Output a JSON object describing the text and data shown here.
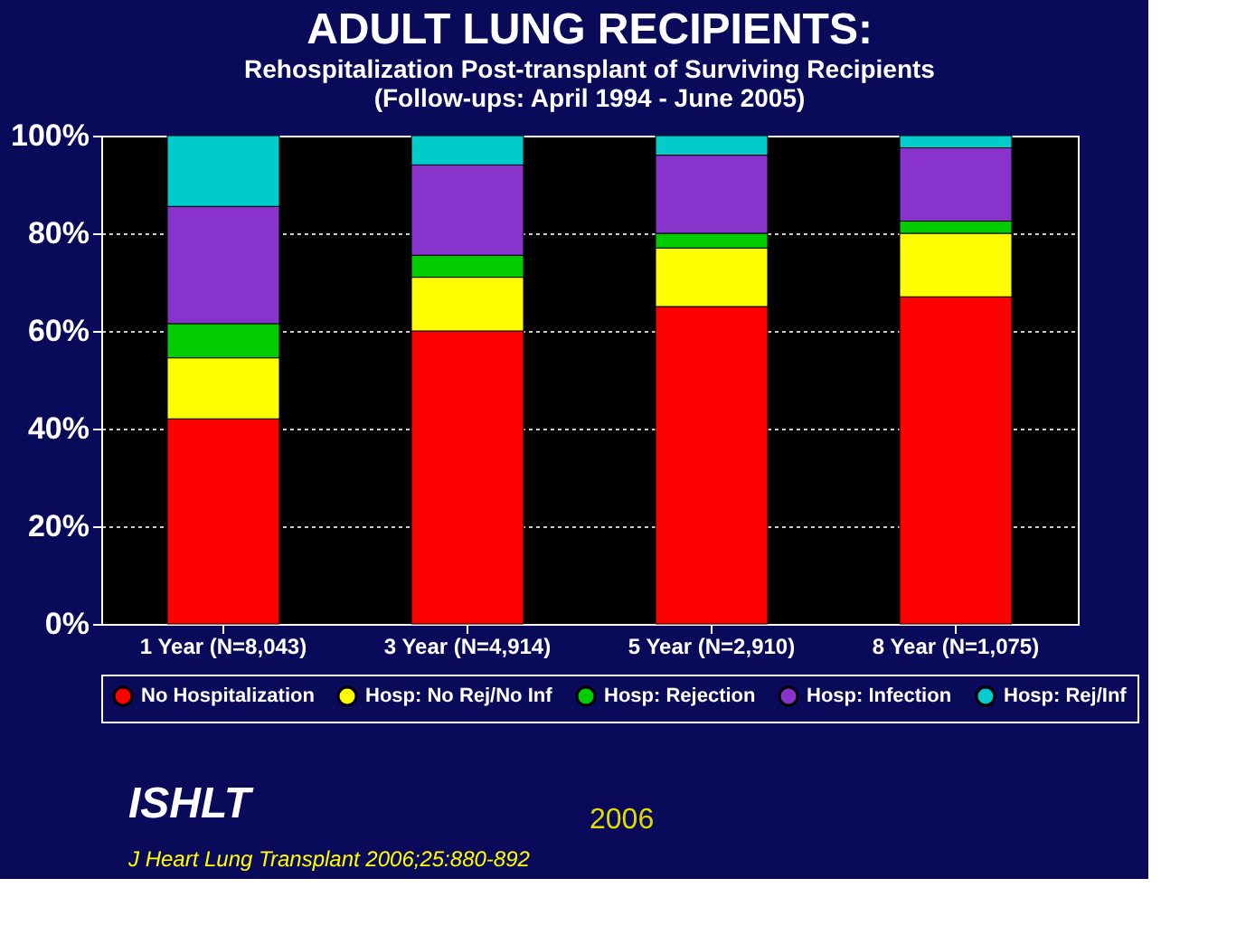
{
  "chart_data": {
    "type": "bar",
    "stacked": true,
    "title": "ADULT LUNG RECIPIENTS:",
    "subtitle": "Rehospitalization Post-transplant of Surviving Recipients\n(Follow-ups: April 1994 - June 2005)",
    "categories": [
      "1 Year (N=8,043)",
      "3 Year (N=4,914)",
      "5 Year (N=2,910)",
      "8 Year (N=1,075)"
    ],
    "series": [
      {
        "name": "No Hospitalization",
        "color": "#ff0000",
        "values": [
          42,
          60,
          65,
          67
        ]
      },
      {
        "name": "Hosp: No Rej/No Inf",
        "color": "#ffff00",
        "values": [
          12.5,
          11,
          12,
          13
        ]
      },
      {
        "name": "Hosp: Rejection",
        "color": "#00cc00",
        "values": [
          7,
          4.5,
          3,
          2.5
        ]
      },
      {
        "name": "Hosp: Infection",
        "color": "#8833cc",
        "values": [
          24,
          18.5,
          16,
          15
        ]
      },
      {
        "name": "Hosp: Rej/Inf",
        "color": "#00cccc",
        "values": [
          14.5,
          6,
          4,
          2.5
        ]
      }
    ],
    "ylim": [
      0,
      100
    ],
    "yticks": [
      {
        "value": 0,
        "label": "0%"
      },
      {
        "value": 20,
        "label": "20%"
      },
      {
        "value": 40,
        "label": "40%"
      },
      {
        "value": 60,
        "label": "60%"
      },
      {
        "value": 80,
        "label": "80%"
      },
      {
        "value": 100,
        "label": "100%"
      }
    ],
    "grid": "y",
    "legend": "bottom",
    "annotations": [
      "ISHLT",
      "2006",
      "J Heart Lung Transplant 2006;25:880-892"
    ]
  }
}
